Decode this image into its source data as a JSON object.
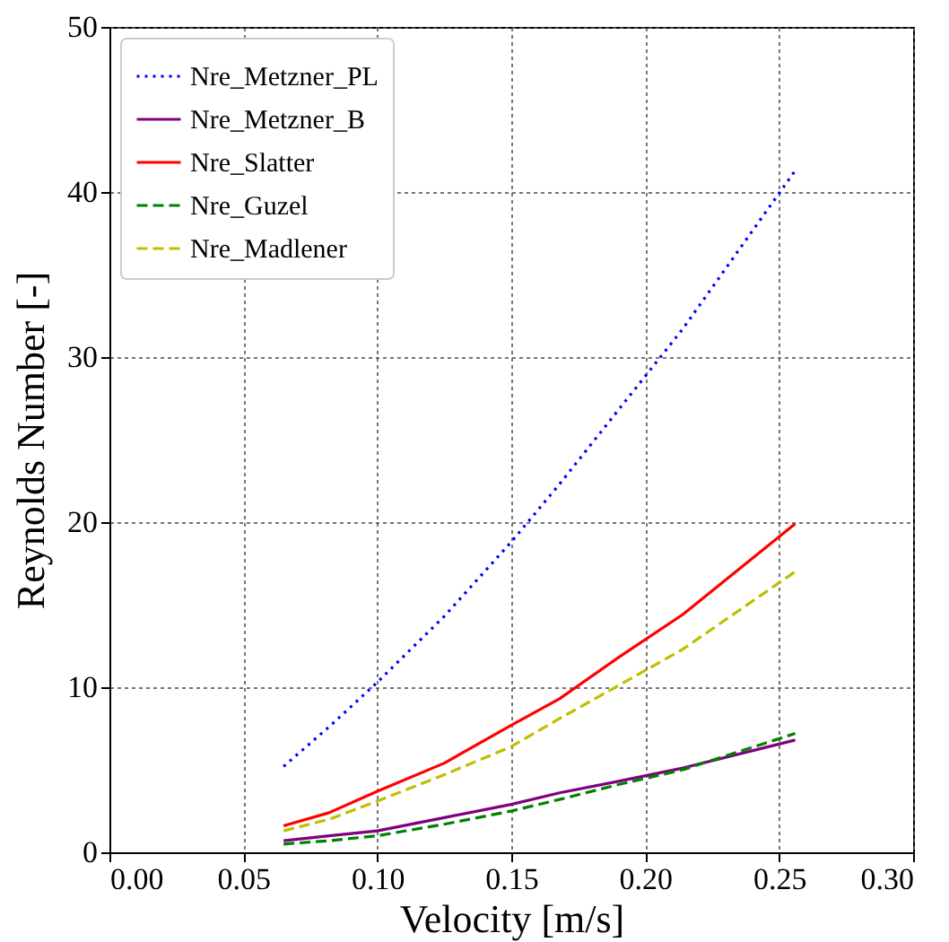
{
  "chart_data": {
    "type": "line",
    "xlabel": "Velocity [m/s]",
    "ylabel": "Reynolds Number [-]",
    "x": [
      0.065,
      0.082,
      0.1,
      0.125,
      0.15,
      0.168,
      0.19,
      0.214,
      0.256
    ],
    "series": [
      {
        "name": "Nre_Metzner_PL",
        "color": "#0000ff",
        "line_style": "dotted",
        "values": [
          5.2,
          7.6,
          10.3,
          14.3,
          18.8,
          22.3,
          26.8,
          31.7,
          41.3
        ]
      },
      {
        "name": "Nre_Metzner_B",
        "color": "#800080",
        "line_style": "solid",
        "values": [
          0.7,
          1.0,
          1.3,
          2.1,
          2.9,
          3.6,
          4.3,
          5.1,
          6.8
        ]
      },
      {
        "name": "Nre_Slatter",
        "color": "#ff0000",
        "line_style": "solid",
        "values": [
          1.6,
          2.4,
          3.7,
          5.4,
          7.7,
          9.3,
          11.8,
          14.4,
          19.9
        ]
      },
      {
        "name": "Nre_Guzel",
        "color": "#008000",
        "line_style": "dashed",
        "values": [
          0.5,
          0.7,
          1.0,
          1.7,
          2.5,
          3.2,
          4.1,
          5.0,
          7.2
        ]
      },
      {
        "name": "Nre_Madlener",
        "color": "#bfbf00",
        "line_style": "dashed",
        "values": [
          1.3,
          2.0,
          3.1,
          4.7,
          6.4,
          8.1,
          10.1,
          12.3,
          17.0
        ]
      }
    ],
    "xlim": [
      0,
      0.3
    ],
    "xticks": [
      {
        "value": 0,
        "label": "0.00"
      },
      {
        "value": 0.05,
        "label": "0.05"
      },
      {
        "value": 0.1,
        "label": "0.10"
      },
      {
        "value": 0.15,
        "label": "0.15"
      },
      {
        "value": 0.2,
        "label": "0.20"
      },
      {
        "value": 0.25,
        "label": "0.25"
      },
      {
        "value": 0.3,
        "label": "0.30"
      }
    ],
    "ylim": [
      0,
      50
    ],
    "yticks": [
      0,
      10,
      20,
      30,
      40,
      50
    ],
    "grid": true,
    "legend": "top left",
    "marker": "none"
  }
}
